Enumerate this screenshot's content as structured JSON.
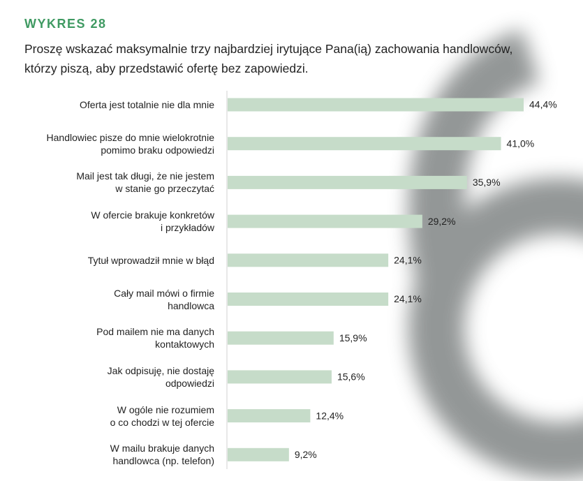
{
  "chart_data": {
    "type": "barh",
    "title": "WYKRES 28",
    "subtitle": "Proszę wskazać maksymalnie trzy najbardziej irytujące Pana(ią) zachowania handlowców,\nktórzy piszą, aby przedstawić ofertę bez zapowiedzi.",
    "categories": [
      "Oferta jest totalnie nie dla mnie",
      "Handlowiec pisze do mnie wielokrotnie\npomimo braku odpowiedzi",
      "Mail jest tak długi, że nie jestem\nw stanie go przeczytać",
      "W ofercie brakuje konkretów\ni przykładów",
      "Tytuł wprowadził mnie w błąd",
      "Cały mail mówi o firmie\nhandlowca",
      "Pod mailem nie ma danych\nkontaktowych",
      "Jak odpisuję, nie dostaję\nodpowiedzi",
      "W ogóle nie rozumiem\no co chodzi w tej ofercie",
      "W mailu brakuje danych\nhandlowca (np. telefon)"
    ],
    "values": [
      44.4,
      41.0,
      35.9,
      29.2,
      24.1,
      24.1,
      15.9,
      15.6,
      12.4,
      9.2
    ],
    "value_labels": [
      "44,4%",
      "41,0%",
      "35,9%",
      "29,2%",
      "24,1%",
      "24,1%",
      "15,9%",
      "15,6%",
      "12,4%",
      "9,2%"
    ],
    "color": "#c6dcc9"
  }
}
